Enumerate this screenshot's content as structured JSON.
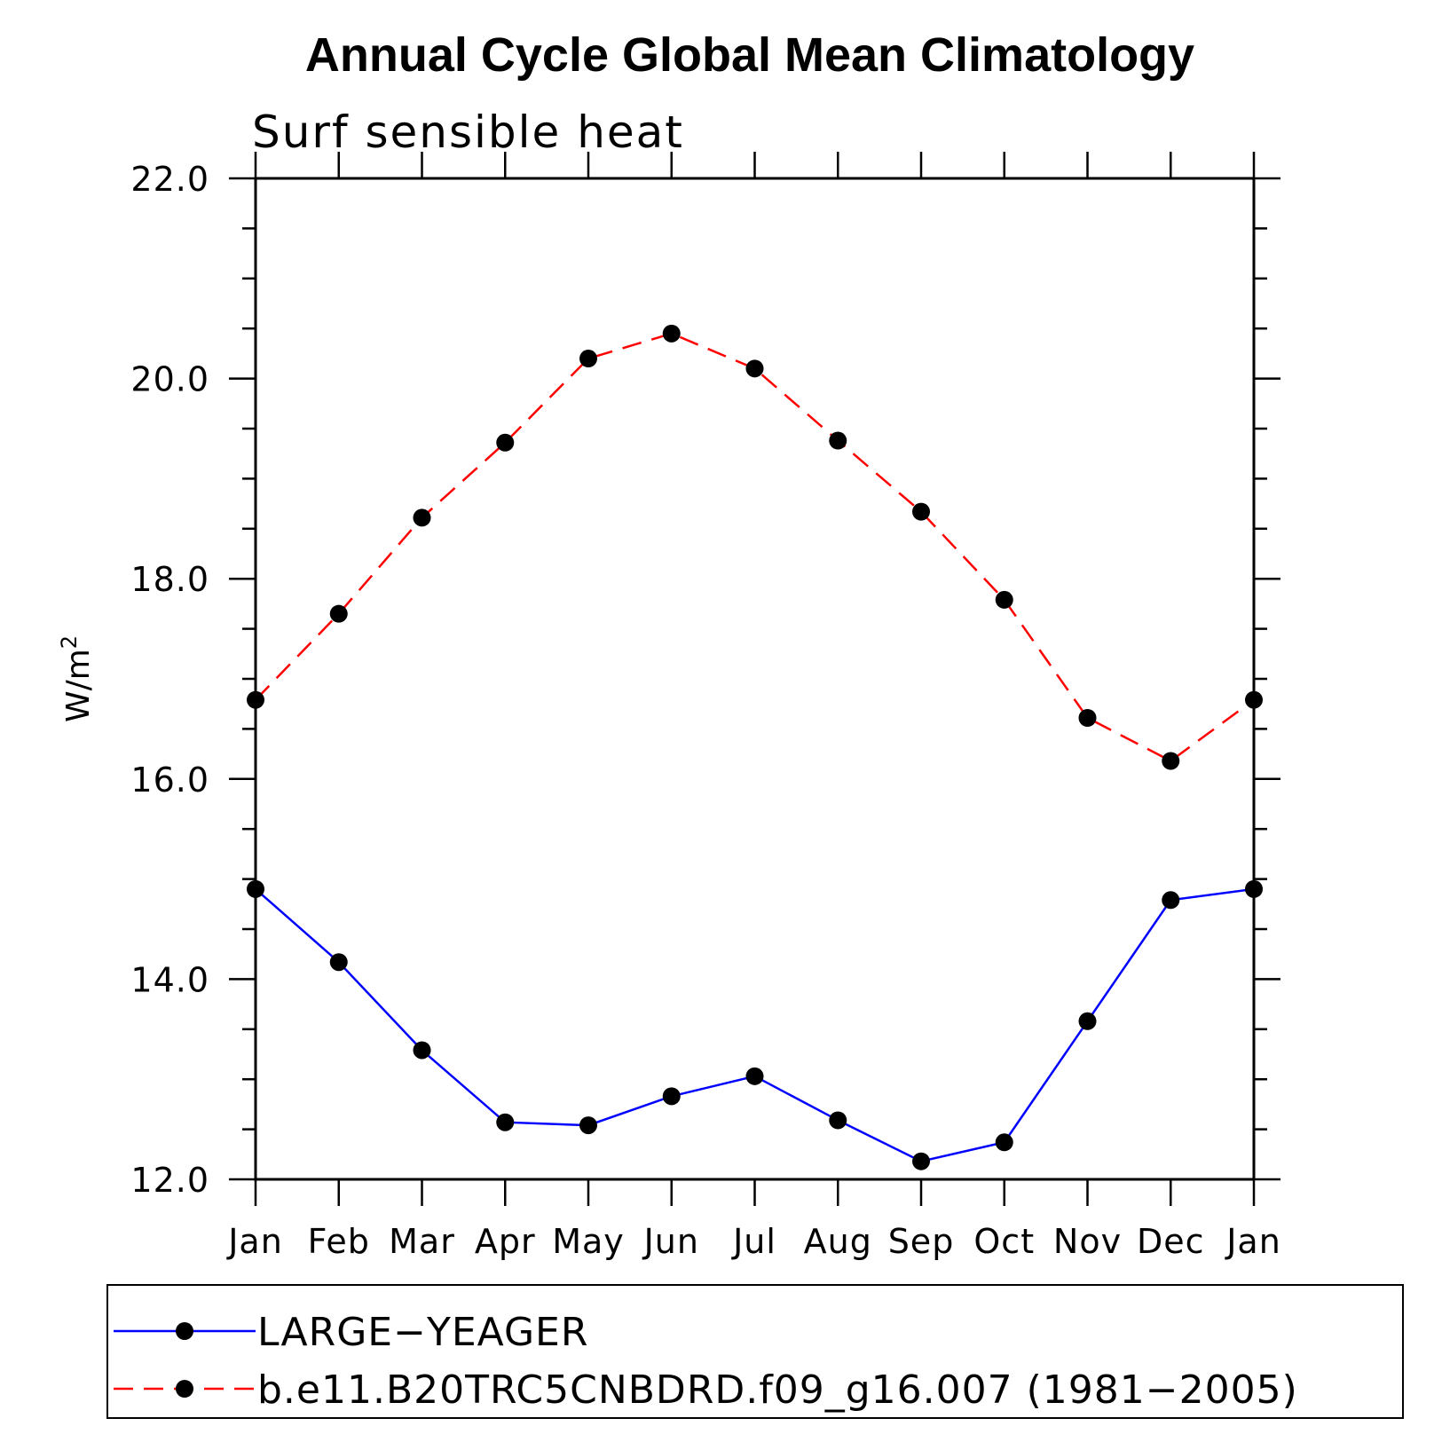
{
  "chart_data": {
    "type": "line",
    "title": "Annual Cycle Global Mean Climatology",
    "subtitle": "Surf sensible heat",
    "ylabel": "W/m",
    "ylabel_superscript": "2",
    "ylim": [
      12.0,
      22.0
    ],
    "yticks": [
      "12.0",
      "14.0",
      "16.0",
      "18.0",
      "20.0",
      "22.0"
    ],
    "categories": [
      "Jan",
      "Feb",
      "Mar",
      "Apr",
      "May",
      "Jun",
      "Jul",
      "Aug",
      "Sep",
      "Oct",
      "Nov",
      "Dec",
      "Jan"
    ],
    "legend_position": "bottom",
    "series": [
      {
        "name": "LARGE−YEAGER",
        "color": "#0000ff",
        "line_style": "solid",
        "marker": "filled-circle",
        "values": [
          14.9,
          14.17,
          13.29,
          12.57,
          12.54,
          12.83,
          13.03,
          12.59,
          12.18,
          12.37,
          13.58,
          14.79,
          14.9
        ]
      },
      {
        "name": "b.e11.B20TRC5CNBDRD.f09_g16.007 (1981−2005)",
        "color": "#ff0000",
        "line_style": "dashed",
        "marker": "filled-circle",
        "values": [
          16.79,
          17.65,
          18.61,
          19.36,
          20.2,
          20.45,
          20.1,
          19.38,
          18.67,
          17.79,
          16.61,
          16.18,
          16.79
        ]
      }
    ]
  }
}
